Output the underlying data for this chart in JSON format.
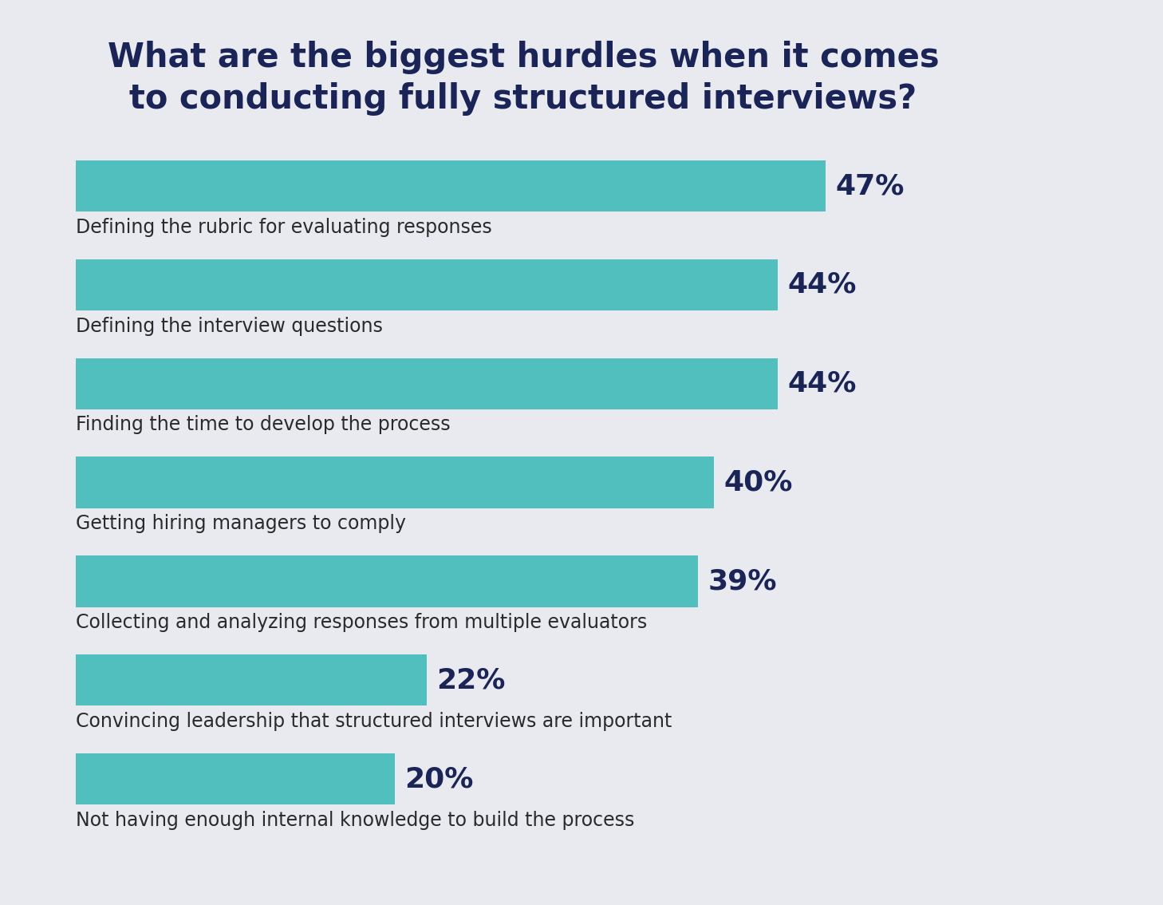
{
  "title_line1": "What are the biggest hurdles when it comes",
  "title_line2": "to conducting fully structured interviews?",
  "categories": [
    "Defining the rubric for evaluating responses",
    "Defining the interview questions",
    "Finding the time to develop the process",
    "Getting hiring managers to comply",
    "Collecting and analyzing responses from multiple evaluators",
    "Convincing leadership that structured interviews are important",
    "Not having enough internal knowledge to build the process"
  ],
  "values": [
    47,
    44,
    44,
    40,
    39,
    22,
    20
  ],
  "bar_color": "#52BFBF",
  "label_color": "#1a2456",
  "title_color": "#1a2456",
  "category_color": "#2a2a2a",
  "background_color": "#e8eaf0",
  "value_fontsize": 26,
  "category_fontsize": 17,
  "title_fontsize": 30,
  "bar_height": 0.52,
  "xlim_max": 55
}
